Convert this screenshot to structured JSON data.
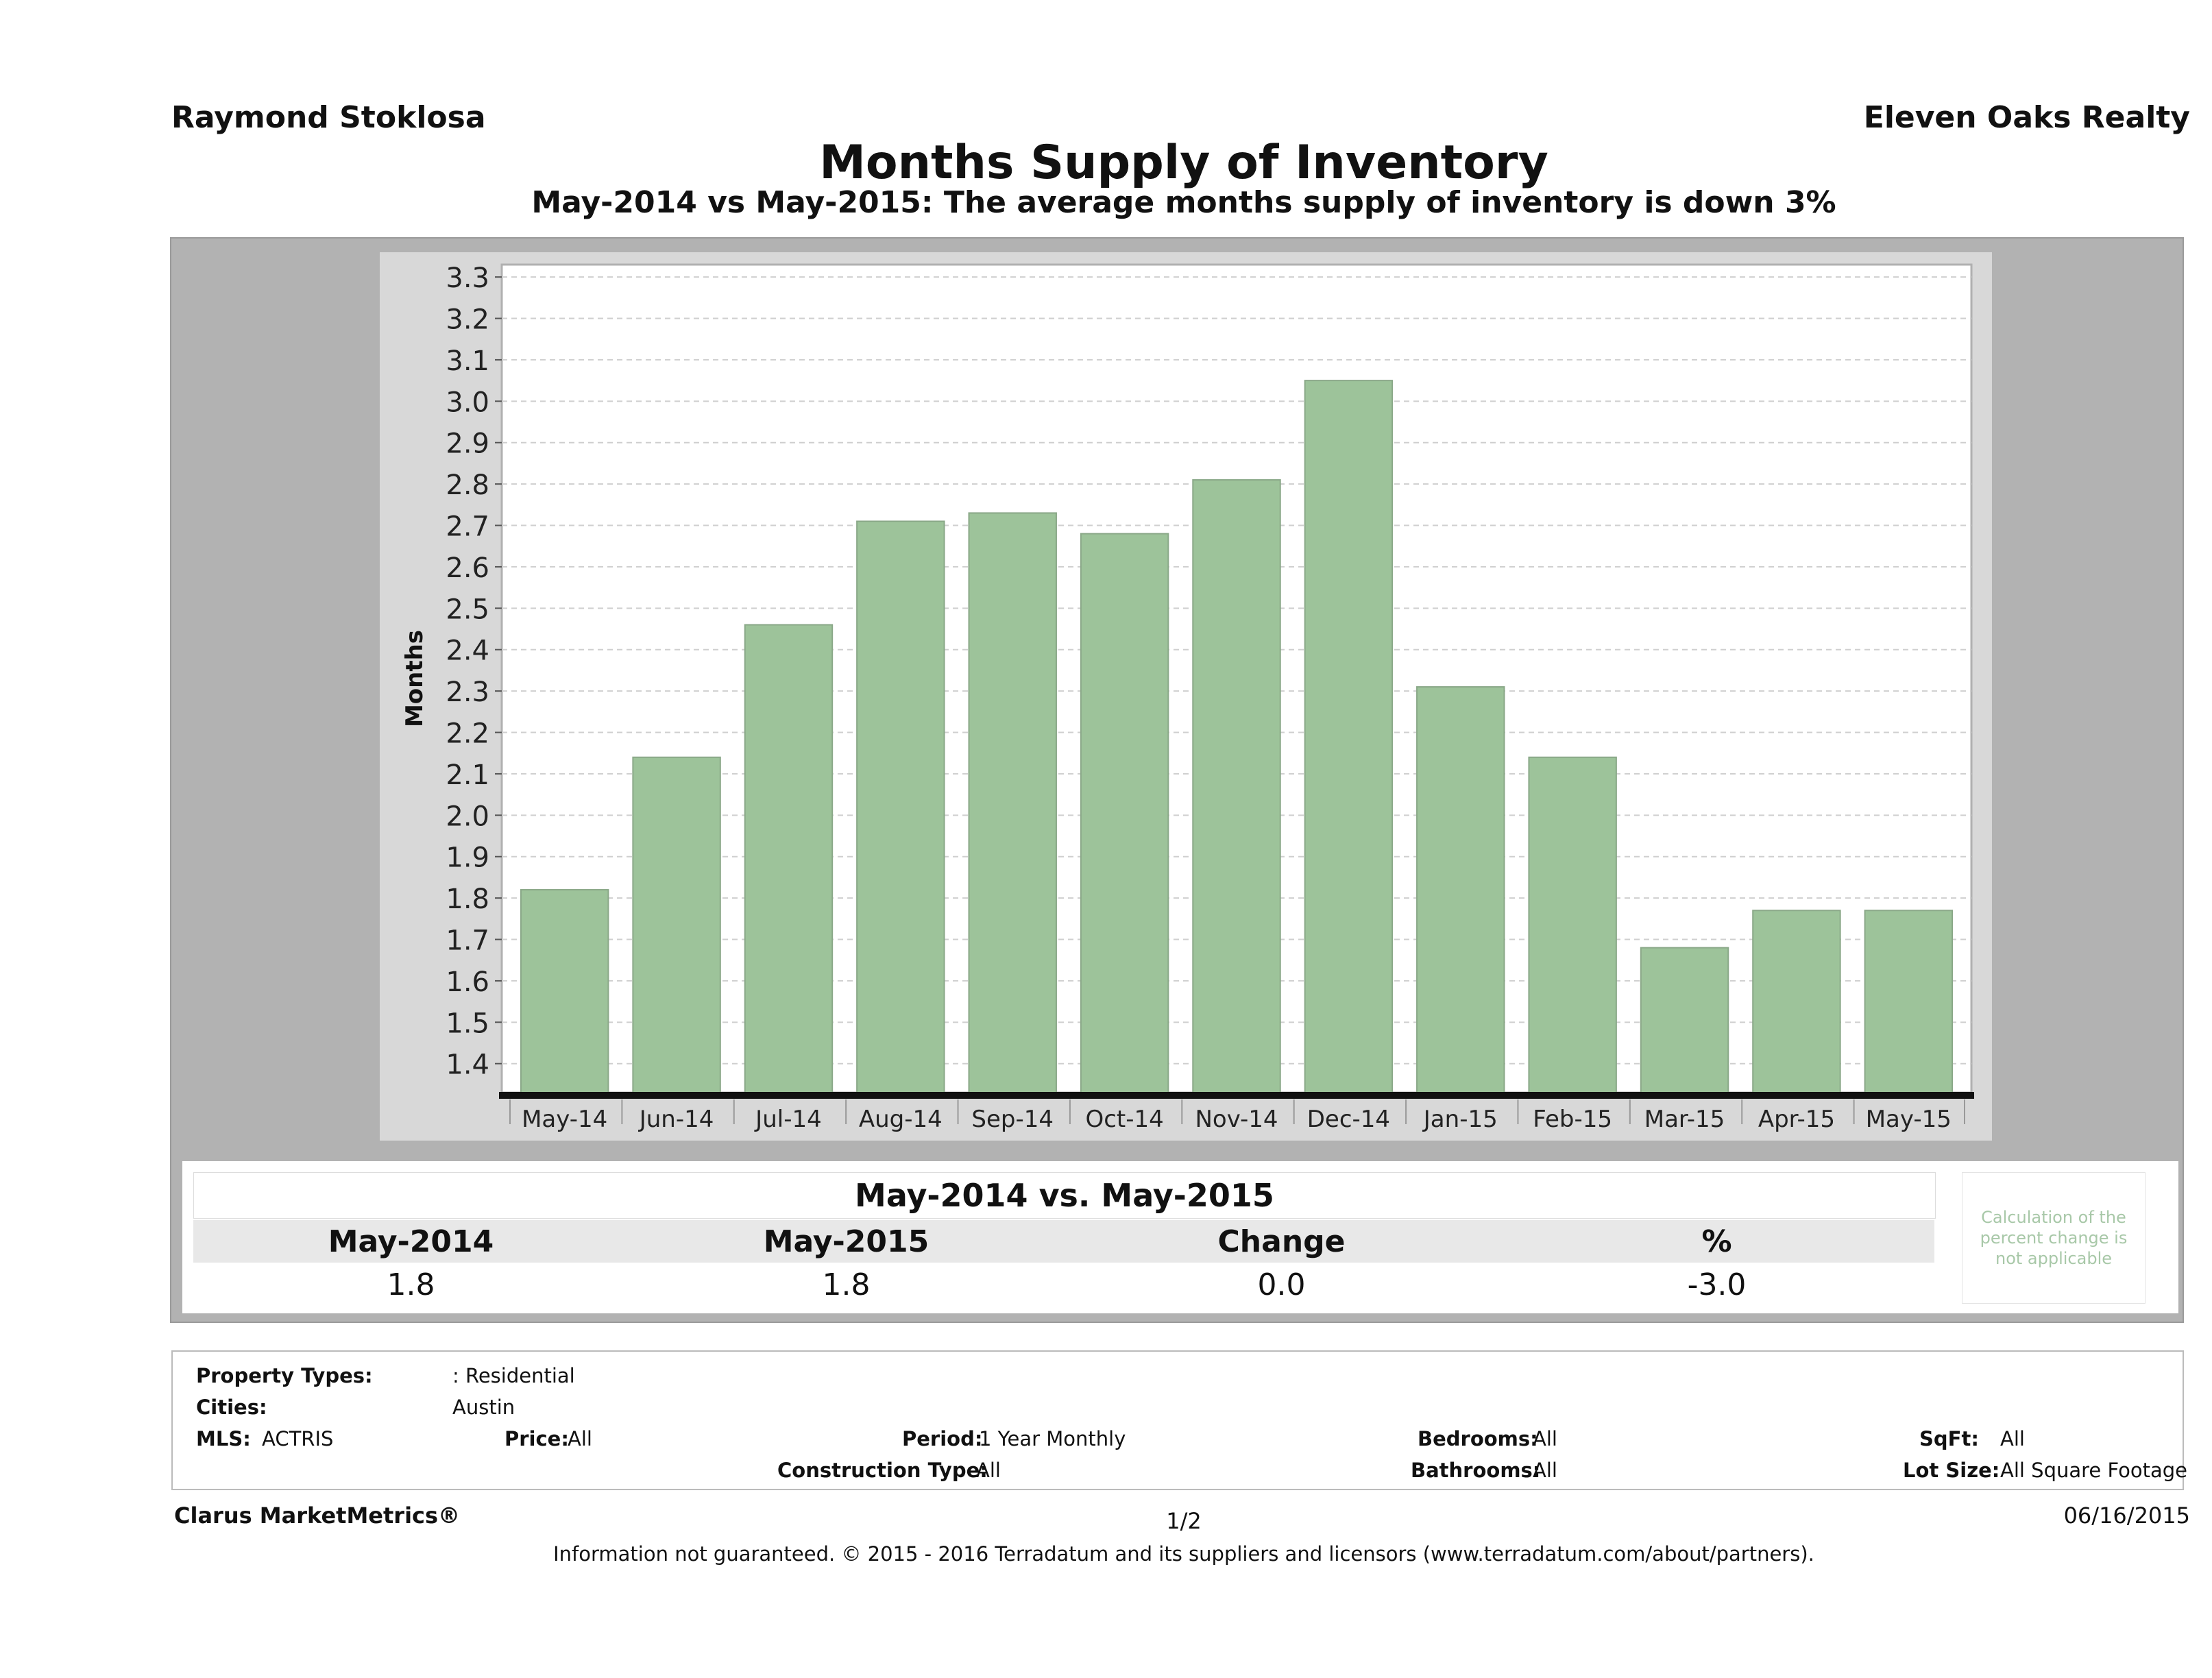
{
  "header": {
    "agent": "Raymond Stoklosa",
    "brokerage": "Eleven Oaks Realty",
    "title": "Months Supply of Inventory",
    "subtitle": "May-2014 vs May-2015: The average months supply of inventory is down 3%"
  },
  "chart_data": {
    "type": "bar",
    "categories": [
      "May-14",
      "Jun-14",
      "Jul-14",
      "Aug-14",
      "Sep-14",
      "Oct-14",
      "Nov-14",
      "Dec-14",
      "Jan-15",
      "Feb-15",
      "Mar-15",
      "Apr-15",
      "May-15"
    ],
    "values": [
      1.82,
      2.14,
      2.46,
      2.71,
      2.73,
      2.68,
      2.81,
      3.05,
      2.31,
      2.14,
      1.68,
      1.77,
      1.77
    ],
    "ylabel": "Months",
    "ylim": [
      1.33,
      3.33
    ],
    "yticks": [
      "1.4",
      "1.5",
      "1.6",
      "1.7",
      "1.8",
      "1.9",
      "2.0",
      "2.1",
      "2.2",
      "2.3",
      "2.4",
      "2.5",
      "2.6",
      "2.7",
      "2.8",
      "2.9",
      "3.0",
      "3.1",
      "3.2",
      "3.3"
    ],
    "grid": true,
    "bar_color": "#9dc39a"
  },
  "comparison": {
    "title": "May-2014 vs. May-2015",
    "headers": [
      "May-2014",
      "May-2015",
      "Change",
      "%"
    ],
    "values": [
      "1.8",
      "1.8",
      "0.0",
      "-3.0"
    ],
    "note": "Calculation of the percent change is not applicable"
  },
  "criteria": {
    "property_types_label": "Property Types:",
    "property_types_value": ": Residential",
    "cities_label": "Cities:",
    "cities_value": "Austin",
    "mls_label": "MLS:",
    "mls_value": "ACTRIS",
    "price_label": "Price:",
    "price_value": "All",
    "period_label": "Period:",
    "period_value": "1 Year Monthly",
    "construction_label": "Construction Type:",
    "construction_value": "All",
    "bedrooms_label": "Bedrooms:",
    "bedrooms_value": "All",
    "bathrooms_label": "Bathrooms:",
    "bathrooms_value": "All",
    "sqft_label": "SqFt:",
    "sqft_value": "All",
    "lot_label": "Lot Size:",
    "lot_value": "All Square Footage"
  },
  "footer": {
    "brand": "Clarus MarketMetrics®",
    "page": "1/2",
    "date": "06/16/2015",
    "disclaimer": "Information not guaranteed. © 2015 - 2016 Terradatum and its suppliers and licensors (www.terradatum.com/about/partners)."
  }
}
